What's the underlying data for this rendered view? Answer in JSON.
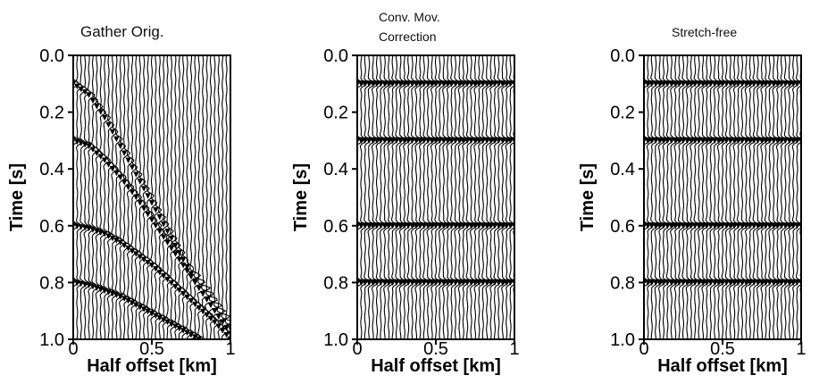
{
  "figure": {
    "panel_titles": [
      "Gather Orig.",
      "Conv. Mov.\nCorrection",
      "Stretch-free"
    ]
  },
  "chart_data": [
    {
      "type": "line",
      "title": "Gather Orig.",
      "xlabel": "Half offset [km]",
      "ylabel": "Time [s]",
      "xlim": [
        0,
        1
      ],
      "ylim": [
        0,
        1
      ],
      "y_inverted": true,
      "x_ticks": [
        0,
        0.5,
        1
      ],
      "x_tick_labels": [
        "0",
        "0.5",
        "1"
      ],
      "y_ticks": [
        0,
        0.2,
        0.4,
        0.6,
        0.8,
        1.0
      ],
      "y_tick_labels": [
        "0.0",
        "0.2",
        "0.4",
        "0.6",
        "0.8",
        "1.0"
      ],
      "num_traces": 41,
      "series": [
        {
          "x": [
            0,
            0.1,
            0.2,
            0.3,
            0.4,
            0.5,
            0.6,
            0.7,
            0.8,
            0.9,
            1.0
          ],
          "y": [
            0.1,
            0.14,
            0.22,
            0.32,
            0.42,
            0.52,
            0.62,
            0.72,
            0.82,
            0.9,
            0.98
          ]
        },
        {
          "x": [
            0,
            0.1,
            0.2,
            0.3,
            0.4,
            0.5,
            0.6,
            0.7,
            0.8,
            0.9,
            1.0
          ],
          "y": [
            0.3,
            0.32,
            0.37,
            0.43,
            0.5,
            0.58,
            0.66,
            0.74,
            0.82,
            0.9,
            0.98
          ]
        },
        {
          "x": [
            0,
            0.1,
            0.2,
            0.3,
            0.4,
            0.5,
            0.6,
            0.7,
            0.8,
            0.9,
            1.0
          ],
          "y": [
            0.6,
            0.61,
            0.63,
            0.66,
            0.7,
            0.74,
            0.79,
            0.84,
            0.89,
            0.94,
            1.0
          ]
        },
        {
          "x": [
            0,
            0.1,
            0.2,
            0.3,
            0.4,
            0.5,
            0.6,
            0.7,
            0.8
          ],
          "y": [
            0.8,
            0.81,
            0.83,
            0.85,
            0.88,
            0.91,
            0.94,
            0.97,
            1.0
          ]
        }
      ]
    },
    {
      "type": "line",
      "title": "Conv. Mov.\nCorrection",
      "xlabel": "Half offset [km]",
      "ylabel": "Time [s]",
      "xlim": [
        0,
        1
      ],
      "ylim": [
        0,
        1
      ],
      "y_inverted": true,
      "x_ticks": [
        0,
        0.5,
        1
      ],
      "x_tick_labels": [
        "0",
        "0.5",
        "1"
      ],
      "y_ticks": [
        0,
        0.2,
        0.4,
        0.6,
        0.8,
        1.0
      ],
      "y_tick_labels": [
        "0.0",
        "0.2",
        "0.4",
        "0.6",
        "0.8",
        "1.0"
      ],
      "num_traces": 41,
      "series": [
        {
          "x": [
            0,
            1
          ],
          "y": [
            0.1,
            0.1
          ]
        },
        {
          "x": [
            0,
            1
          ],
          "y": [
            0.3,
            0.3
          ]
        },
        {
          "x": [
            0,
            1
          ],
          "y": [
            0.6,
            0.6
          ]
        },
        {
          "x": [
            0,
            1
          ],
          "y": [
            0.8,
            0.8
          ]
        }
      ]
    },
    {
      "type": "line",
      "title": "Stretch-free",
      "xlabel": "Half offset [km]",
      "ylabel": "Time [s]",
      "xlim": [
        0,
        1
      ],
      "ylim": [
        0,
        1
      ],
      "y_inverted": true,
      "x_ticks": [
        0,
        0.5,
        1
      ],
      "x_tick_labels": [
        "0",
        "0.5",
        "1"
      ],
      "y_ticks": [
        0,
        0.2,
        0.4,
        0.6,
        0.8,
        1.0
      ],
      "y_tick_labels": [
        "0.0",
        "0.2",
        "0.4",
        "0.6",
        "0.8",
        "1.0"
      ],
      "num_traces": 41,
      "series": [
        {
          "x": [
            0,
            1
          ],
          "y": [
            0.1,
            0.1
          ]
        },
        {
          "x": [
            0,
            1
          ],
          "y": [
            0.3,
            0.3
          ]
        },
        {
          "x": [
            0,
            1
          ],
          "y": [
            0.6,
            0.6
          ]
        },
        {
          "x": [
            0,
            1
          ],
          "y": [
            0.8,
            0.8
          ]
        }
      ]
    }
  ]
}
